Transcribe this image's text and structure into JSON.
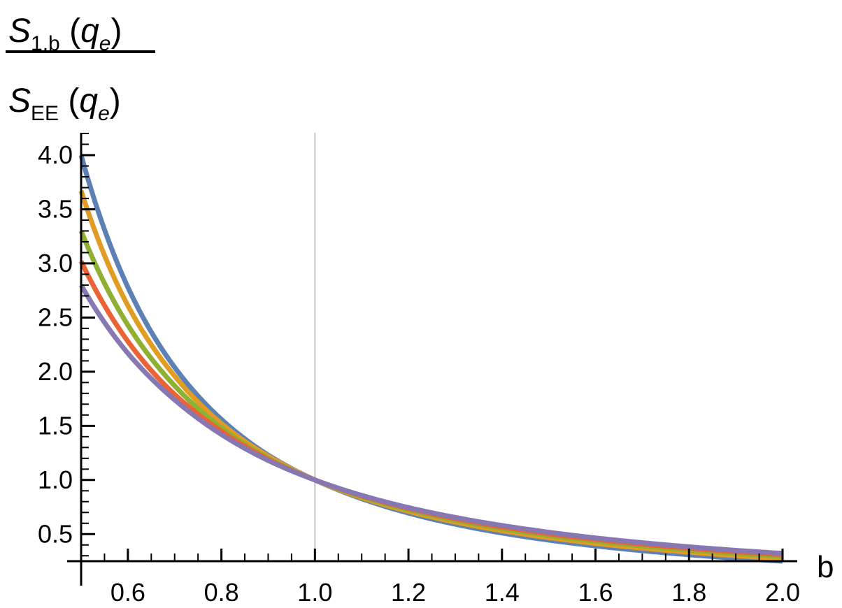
{
  "chart_data": {
    "type": "line",
    "xlabel": "b",
    "ylabel": {
      "numerator": {
        "main": "S",
        "sub": "1,b",
        "arg_open": " (",
        "arg": "q",
        "arg_sub": "e",
        "arg_close": ")"
      },
      "denominator": {
        "main": "S",
        "sub": "EE",
        "arg_open": " (",
        "arg": "q",
        "arg_sub": "e",
        "arg_close": ")"
      }
    },
    "xlim": [
      0.5,
      2.0
    ],
    "ylim": [
      0.25,
      4.2
    ],
    "x_ticks": [
      "0.6",
      "0.8",
      "1.0",
      "1.2",
      "1.4",
      "1.6",
      "1.8",
      "2.0"
    ],
    "y_ticks": [
      "0.5",
      "1.0",
      "1.5",
      "2.0",
      "2.5",
      "3.0",
      "3.5",
      "4.0"
    ],
    "vertical_reference_line": 1.0,
    "grid": false,
    "series": [
      {
        "color": "#5e81b5",
        "points": [
          [
            0.5,
            4.0
          ],
          [
            0.6,
            2.78
          ],
          [
            0.7,
            2.04
          ],
          [
            0.8,
            1.56
          ],
          [
            0.9,
            1.23
          ],
          [
            1.0,
            1.0
          ],
          [
            1.2,
            0.694
          ],
          [
            1.4,
            0.51
          ],
          [
            1.6,
            0.391
          ],
          [
            1.8,
            0.309
          ],
          [
            2.0,
            0.25
          ]
        ]
      },
      {
        "color": "#e19c24",
        "points": [
          [
            0.5,
            3.67
          ],
          [
            0.6,
            2.61
          ],
          [
            0.7,
            1.96
          ],
          [
            0.8,
            1.52
          ],
          [
            0.9,
            1.22
          ],
          [
            1.0,
            1.0
          ],
          [
            1.2,
            0.71
          ],
          [
            1.4,
            0.532
          ],
          [
            1.6,
            0.414
          ],
          [
            1.8,
            0.333
          ],
          [
            2.0,
            0.273
          ]
        ]
      },
      {
        "color": "#8fb032",
        "points": [
          [
            0.5,
            3.3
          ],
          [
            0.6,
            2.43
          ],
          [
            0.7,
            1.87
          ],
          [
            0.8,
            1.48
          ],
          [
            0.9,
            1.2
          ],
          [
            1.0,
            1.0
          ],
          [
            1.2,
            0.725
          ],
          [
            1.4,
            0.552
          ],
          [
            1.6,
            0.436
          ],
          [
            1.8,
            0.354
          ],
          [
            2.0,
            0.294
          ]
        ]
      },
      {
        "color": "#eb6235",
        "points": [
          [
            0.5,
            3.02
          ],
          [
            0.6,
            2.28
          ],
          [
            0.7,
            1.79
          ],
          [
            0.8,
            1.45
          ],
          [
            0.9,
            1.19
          ],
          [
            1.0,
            1.0
          ],
          [
            1.2,
            0.738
          ],
          [
            1.4,
            0.567
          ],
          [
            1.6,
            0.452
          ],
          [
            1.8,
            0.37
          ],
          [
            2.0,
            0.31
          ]
        ]
      },
      {
        "color": "#8778b3",
        "points": [
          [
            0.5,
            2.8
          ],
          [
            0.6,
            2.17
          ],
          [
            0.7,
            1.74
          ],
          [
            0.8,
            1.42
          ],
          [
            0.9,
            1.18
          ],
          [
            1.0,
            1.0
          ],
          [
            1.2,
            0.745
          ],
          [
            1.4,
            0.58
          ],
          [
            1.6,
            0.465
          ],
          [
            1.8,
            0.383
          ],
          [
            2.0,
            0.322
          ]
        ]
      }
    ]
  }
}
